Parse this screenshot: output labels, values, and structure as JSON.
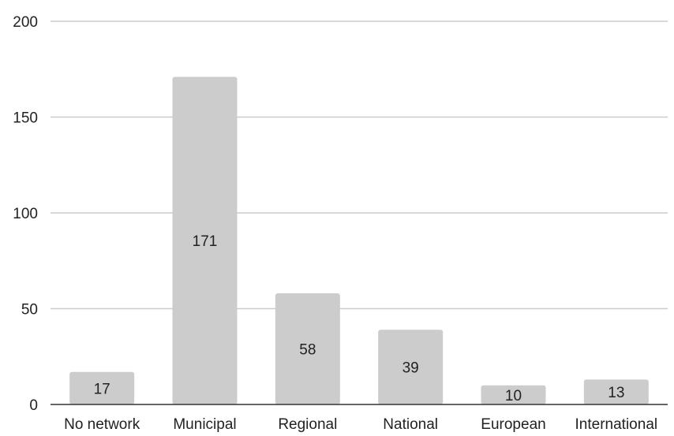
{
  "chart_data": {
    "type": "bar",
    "title": "",
    "xlabel": "",
    "ylabel": "",
    "categories": [
      "No network",
      "Municipal",
      "Regional",
      "National",
      "European",
      "International"
    ],
    "values": [
      17,
      171,
      58,
      39,
      10,
      13
    ],
    "data_labels": [
      "17",
      "171",
      "58",
      "39",
      "10",
      "13"
    ],
    "ylim": [
      0,
      200
    ],
    "yticks": [
      0,
      50,
      100,
      150,
      200
    ],
    "ytick_labels": [
      "0",
      "50",
      "100",
      "150",
      "200"
    ],
    "grid": true,
    "legend": "none",
    "colors": {
      "bar": "#cccccc",
      "grid": "#cccccc",
      "text": "#222222"
    }
  }
}
